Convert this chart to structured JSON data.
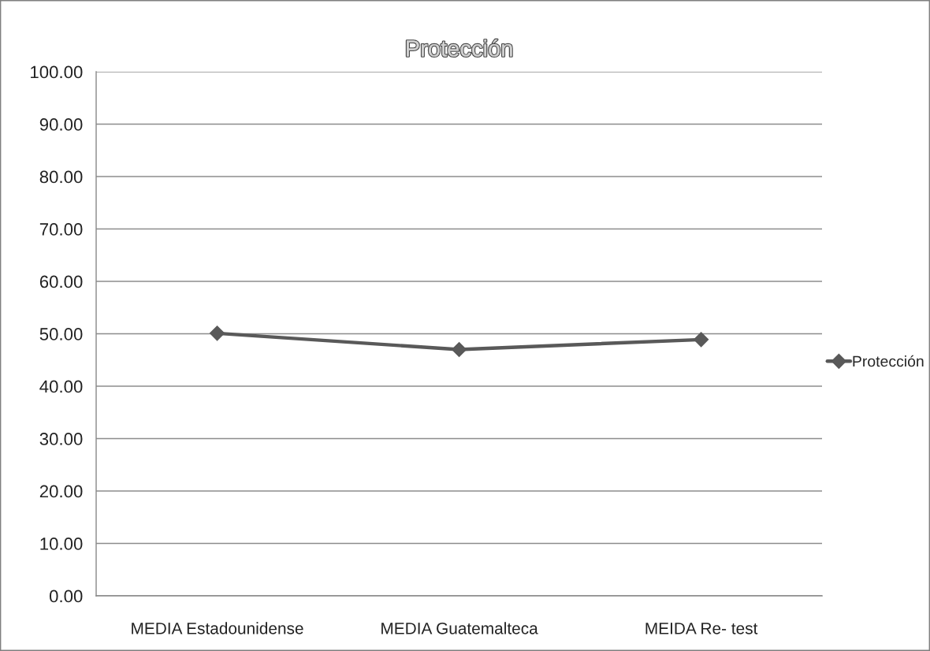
{
  "chart_data": {
    "type": "line",
    "title": "Protección",
    "categories": [
      "MEDIA Estadounidense",
      "MEDIA Guatemalteca",
      "MEIDA Re- test"
    ],
    "series": [
      {
        "name": "Protección",
        "color": "#595959",
        "values": [
          50.1,
          47.0,
          48.9
        ]
      }
    ],
    "ylim": [
      0,
      100
    ],
    "yticks": [
      {
        "value": 0,
        "label": "0.00"
      },
      {
        "value": 10,
        "label": "10.00"
      },
      {
        "value": 20,
        "label": "20.00"
      },
      {
        "value": 30,
        "label": "30.00"
      },
      {
        "value": 40,
        "label": "40.00"
      },
      {
        "value": 50,
        "label": "50.00"
      },
      {
        "value": 60,
        "label": "60.00"
      },
      {
        "value": 70,
        "label": "70.00"
      },
      {
        "value": 80,
        "label": "80.00"
      },
      {
        "value": 90,
        "label": "90.00"
      },
      {
        "value": 100,
        "label": "100.00"
      }
    ],
    "grid": "y",
    "legend": "right",
    "marker": "diamond",
    "line_style": "solid"
  }
}
